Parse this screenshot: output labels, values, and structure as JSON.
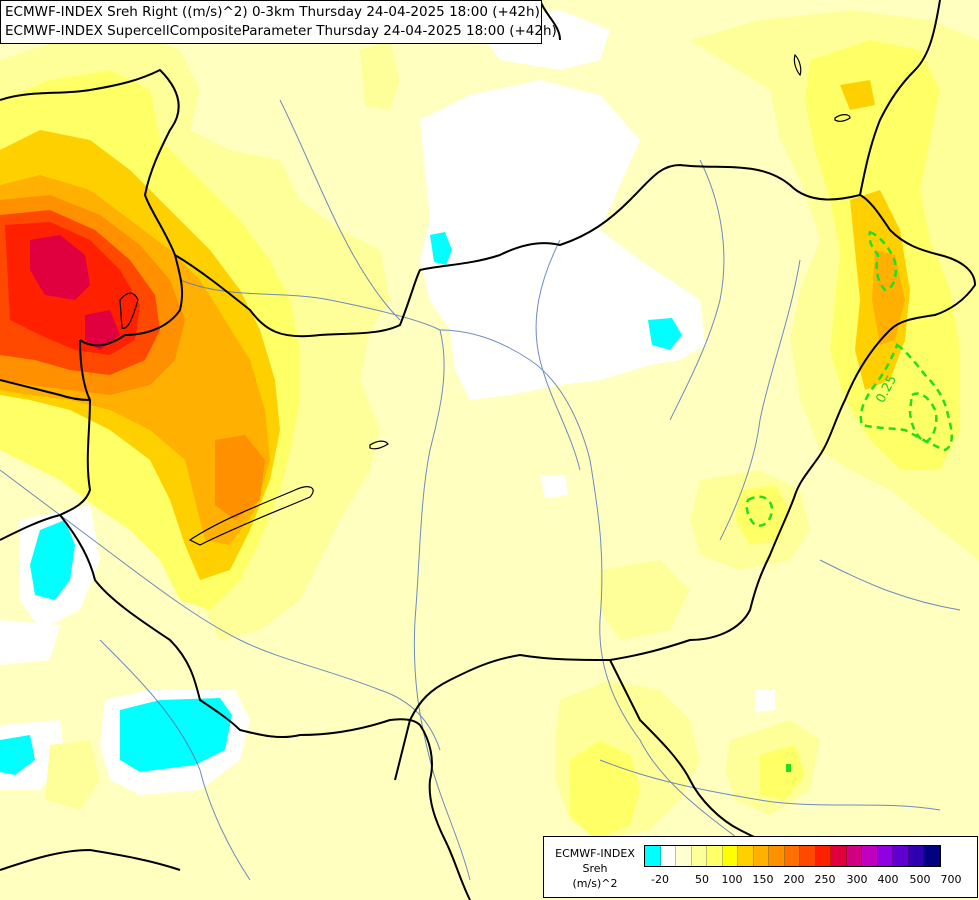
{
  "title": {
    "line1": "ECMWF-INDEX Sreh Right ((m/s)^2) 0-3km Thursday 24-04-2025 18:00 (+42h)",
    "line2": "ECMWF-INDEX SupercellCompositeParameter Thursday 24-04-2025 18:00 (+42h)"
  },
  "legend": {
    "line1": "ECMWF-INDEX",
    "line2": "Sreh",
    "line3": "(m/s)^2",
    "colors": [
      "#00ffff",
      "#ffffff",
      "#ffffd0",
      "#ffff9a",
      "#ffff66",
      "#ffff00",
      "#ffd000",
      "#ffb000",
      "#ff9000",
      "#ff7000",
      "#ff4800",
      "#ff2000",
      "#e00040",
      "#d00080",
      "#c000c0",
      "#9000e0",
      "#6000d0",
      "#3000b0",
      "#000080"
    ],
    "ticks": [
      "-20",
      "50",
      "100",
      "150",
      "200",
      "250",
      "300",
      "400",
      "500",
      "700"
    ]
  },
  "contour_labels": [
    "0.25"
  ]
}
